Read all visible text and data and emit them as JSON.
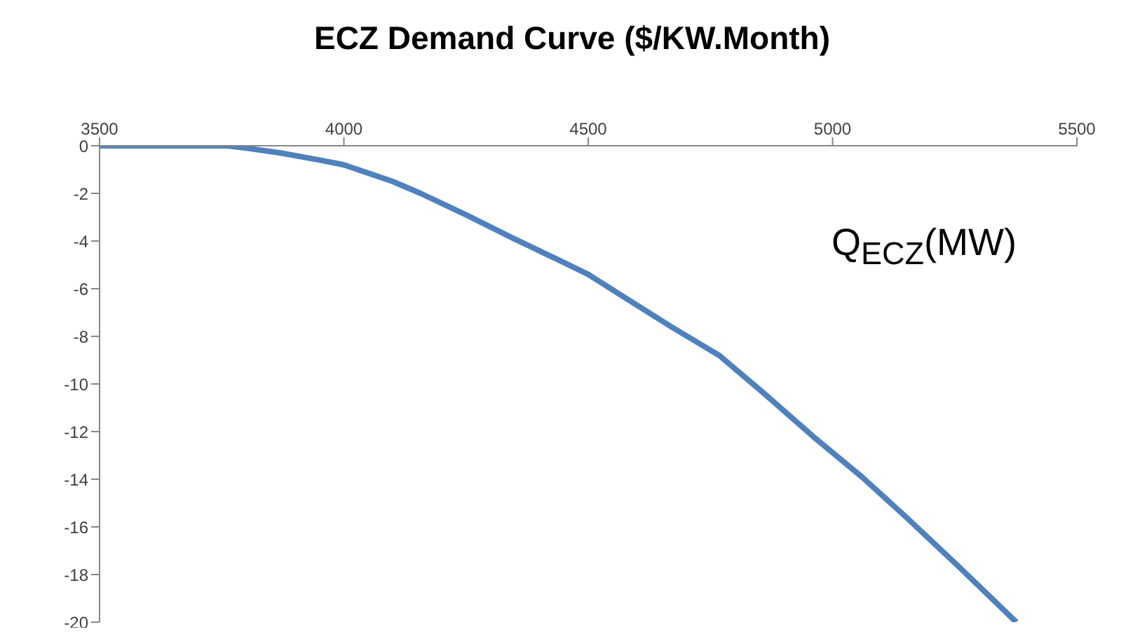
{
  "chart_data": {
    "type": "line",
    "title": "ECZ Demand Curve ($/KW.Month)",
    "xlabel": "Q$_{ECZ}$(MW)",
    "xlim": [
      3500,
      5500
    ],
    "xticks": [
      3500,
      4000,
      4500,
      5000,
      5500
    ],
    "ylim": [
      -20,
      0
    ],
    "yticks": [
      0,
      -2,
      -4,
      -6,
      -8,
      -10,
      -12,
      -14,
      -16,
      -18,
      -20
    ],
    "grid": false,
    "legend": false,
    "marker": "none",
    "line_style": "solid",
    "series": [
      {
        "color": "#4f81bd",
        "x": [
          3500,
          3600,
          3700,
          3760,
          3800,
          3870,
          3950,
          4000,
          4100,
          4157,
          4250,
          4348,
          4450,
          4500,
          4577,
          4670,
          4768,
          4860,
          4960,
          5060,
          5151,
          5260,
          5376
        ],
        "values": [
          0,
          0,
          0,
          0,
          -0.1,
          -0.3,
          -0.6,
          -0.8,
          -1.5,
          -2,
          -2.9,
          -3.9,
          -4.9,
          -5.4,
          -6.4,
          -7.6,
          -8.8,
          -10.4,
          -12.2,
          -13.9,
          -15.6,
          -17.7,
          -20
        ]
      }
    ]
  }
}
